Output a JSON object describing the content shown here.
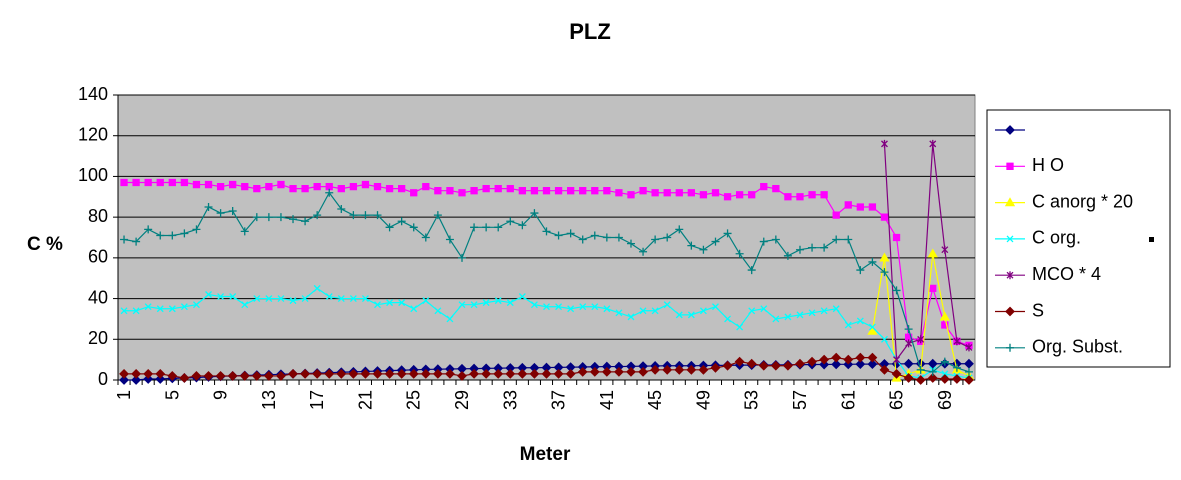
{
  "chart_data": {
    "type": "line",
    "title": "PLZ",
    "x_label": "Meter",
    "y_label": "C %",
    "categories": [
      1,
      null,
      null,
      null,
      5,
      null,
      null,
      null,
      9,
      null,
      null,
      null,
      13,
      null,
      null,
      null,
      17,
      null,
      null,
      null,
      21,
      null,
      null,
      null,
      25,
      null,
      null,
      null,
      29,
      null,
      null,
      null,
      33,
      null,
      null,
      null,
      37,
      null,
      null,
      null,
      41,
      null,
      null,
      null,
      45,
      null,
      null,
      null,
      49,
      null,
      null,
      null,
      53,
      null,
      null,
      null,
      57,
      null,
      null,
      null,
      61,
      null,
      null,
      null,
      65,
      null,
      null,
      null,
      69,
      null,
      null
    ],
    "ylim": [
      0,
      140
    ],
    "yticks": [
      0,
      20,
      40,
      60,
      80,
      100,
      120,
      140
    ],
    "grid": true,
    "legend": "right",
    "series": [
      {
        "color": "#000080",
        "marker": "diamond",
        "values": [
          0,
          0,
          0.5,
          0.5,
          0.8,
          1,
          1.2,
          1.5,
          1.8,
          2,
          2.2,
          2.4,
          2.6,
          2.8,
          3,
          3.2,
          3.4,
          3.6,
          3.8,
          4,
          4.2,
          4.4,
          4.6,
          4.8,
          5,
          5.2,
          5.3,
          5.4,
          5.5,
          5.6,
          5.7,
          5.8,
          5.9,
          6,
          6,
          6.1,
          6.2,
          6.3,
          6.4,
          6.5,
          6.6,
          6.6,
          6.7,
          6.8,
          6.9,
          7,
          7,
          7,
          7.1,
          7.2,
          7.2,
          7.3,
          7.3,
          7.4,
          7.4,
          7.5,
          7.5,
          7.6,
          7.6,
          7.7,
          7.7,
          7.8,
          7.8,
          7.9,
          7.9,
          8,
          8,
          8,
          8,
          8,
          8
        ]
      },
      {
        "name": "H O",
        "color": "#ff00ff",
        "marker": "square",
        "values": [
          97,
          97,
          97,
          97,
          97,
          97,
          96,
          96,
          95,
          96,
          95,
          94,
          95,
          96,
          94,
          94,
          95,
          95,
          94,
          95,
          96,
          95,
          94,
          94,
          92,
          95,
          93,
          93,
          92,
          93,
          94,
          94,
          94,
          93,
          93,
          93,
          93,
          93,
          93,
          93,
          93,
          92,
          91,
          93,
          92,
          92,
          92,
          92,
          91,
          92,
          90,
          91,
          91,
          95,
          94,
          90,
          90,
          91,
          91,
          81,
          86,
          85,
          85,
          80,
          70,
          21,
          19,
          45,
          27,
          19,
          17
        ]
      },
      {
        "name": "C anorg * 20",
        "color": "#ffff00",
        "marker": "triangle",
        "values": [
          null,
          null,
          null,
          null,
          null,
          null,
          null,
          null,
          null,
          null,
          null,
          null,
          null,
          null,
          null,
          null,
          null,
          null,
          null,
          null,
          null,
          null,
          null,
          null,
          null,
          null,
          null,
          null,
          null,
          null,
          null,
          null,
          null,
          null,
          null,
          null,
          null,
          null,
          null,
          null,
          null,
          null,
          null,
          null,
          null,
          null,
          null,
          null,
          null,
          null,
          null,
          null,
          null,
          null,
          null,
          null,
          null,
          null,
          null,
          null,
          null,
          null,
          24,
          60,
          1,
          3,
          5,
          62,
          31,
          5,
          2
        ]
      },
      {
        "name": "C org.",
        "color": "#00ffff",
        "marker": "x",
        "values": [
          34,
          34,
          36,
          35,
          35,
          36,
          37,
          42,
          41,
          41,
          37,
          40,
          40,
          40,
          39,
          40,
          45,
          41,
          40,
          40,
          40,
          37,
          38,
          38,
          35,
          39,
          34,
          30,
          37,
          37,
          38,
          39,
          38,
          41,
          37,
          36,
          36,
          35,
          36,
          36,
          35,
          33,
          31,
          34,
          34,
          37,
          32,
          32,
          34,
          36,
          30,
          26,
          34,
          35,
          30,
          31,
          32,
          33,
          34,
          35,
          27,
          29,
          26,
          20,
          10,
          2,
          1,
          5,
          3,
          2,
          1
        ]
      },
      {
        "name": "MCO * 4",
        "color": "#800080",
        "marker": "star",
        "values": [
          null,
          null,
          null,
          null,
          null,
          null,
          null,
          null,
          null,
          null,
          null,
          null,
          null,
          null,
          null,
          null,
          null,
          null,
          null,
          null,
          null,
          null,
          null,
          null,
          null,
          null,
          null,
          null,
          null,
          null,
          null,
          null,
          null,
          null,
          null,
          null,
          null,
          null,
          null,
          null,
          null,
          null,
          null,
          null,
          null,
          null,
          null,
          null,
          null,
          null,
          null,
          null,
          null,
          null,
          null,
          null,
          null,
          null,
          null,
          null,
          null,
          null,
          null,
          116,
          10,
          18,
          20,
          116,
          64,
          19,
          16
        ]
      },
      {
        "name": "S",
        "color": "#800000",
        "marker": "diamond",
        "values": [
          3,
          3,
          3,
          3,
          2,
          1,
          2,
          2,
          2,
          2,
          2,
          2,
          2,
          2,
          3,
          3,
          3,
          3,
          3,
          3,
          3,
          3,
          3,
          3,
          3,
          3,
          3,
          3,
          2,
          3,
          3,
          3,
          3,
          3,
          3,
          3,
          3,
          3,
          4,
          4,
          4,
          4,
          4,
          4,
          5,
          5,
          5,
          5,
          5,
          6,
          7,
          9,
          8,
          7,
          7,
          7,
          8,
          9,
          10,
          11,
          10,
          11,
          11,
          5,
          3,
          1,
          0,
          1,
          0.5,
          0.5,
          0
        ]
      },
      {
        "name": "Org. Subst.",
        "color": "#008080",
        "marker": "plus",
        "values": [
          69,
          68,
          74,
          71,
          71,
          72,
          74,
          85,
          82,
          83,
          73,
          80,
          80,
          80,
          79,
          78,
          81,
          92,
          84,
          81,
          81,
          81,
          75,
          78,
          75,
          70,
          81,
          69,
          60,
          75,
          75,
          75,
          78,
          76,
          82,
          73,
          71,
          72,
          69,
          71,
          70,
          70,
          67,
          63,
          69,
          70,
          74,
          66,
          64,
          68,
          72,
          62,
          54,
          68,
          69,
          61,
          64,
          65,
          65,
          69,
          69,
          54,
          58,
          53,
          44,
          25,
          5,
          4,
          9,
          6,
          4
        ]
      }
    ]
  }
}
